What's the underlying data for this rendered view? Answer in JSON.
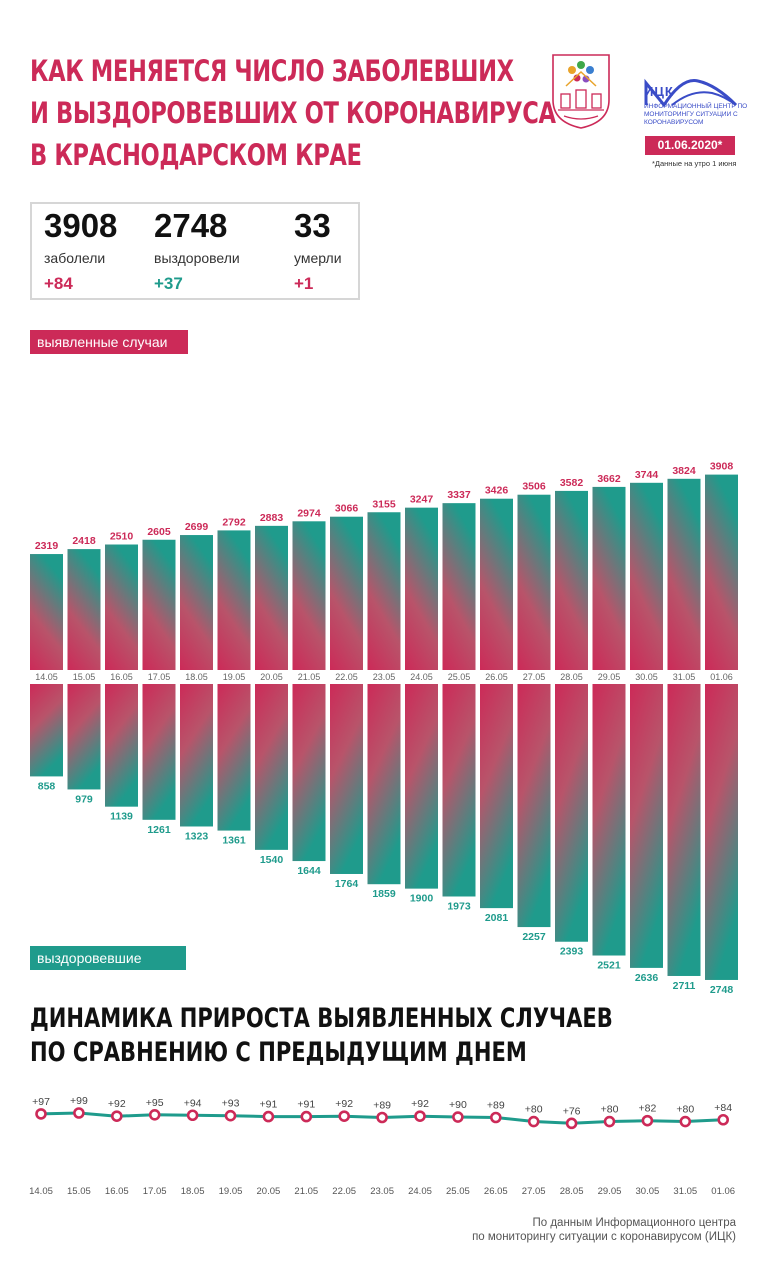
{
  "header": {
    "title_lines": [
      "КАК МЕНЯЕТСЯ ЧИСЛО ЗАБОЛЕВШИХ",
      "И ВЫЗДОРОВЕВШИХ ОТ КОРОНАВИРУСА",
      "В КРАСНОДАРСКОМ КРАЕ"
    ],
    "logo_name": "ИЦК",
    "logo_desc": "ИНФОРМАЦИОННЫЙ ЦЕНТР ПО МОНИТОРИНГУ СИТУАЦИИ С КОРОНАВИРУСОМ",
    "date": "01.06.2020*",
    "date_note": "*Данные на утро 1 июня"
  },
  "stats": [
    {
      "value": "3908",
      "label": "заболели",
      "delta": "+84",
      "tone": "red"
    },
    {
      "value": "2748",
      "label": "выздоровели",
      "delta": "+37",
      "tone": "teal"
    },
    {
      "value": "33",
      "label": "умерли",
      "delta": "+1",
      "tone": "red"
    }
  ],
  "labels": {
    "cases": "выявленные случаи",
    "recovered": "выздоровевшие"
  },
  "subtitle_lines": [
    "ДИНАМИКА ПРИРОСТА ВЫЯВЛЕННЫХ СЛУЧАЕВ",
    "ПО СРАВНЕНИЮ С ПРЕДЫДУЩИМ ДНЕМ"
  ],
  "footer_lines": [
    "По данным Информационного центра",
    "по мониторингу ситуации с коронавирусом (ИЦК)"
  ],
  "colors": {
    "red": "#cc2a58",
    "teal": "#1f9b8c",
    "line": "#1f9b8c",
    "marker": "#cc2a58"
  },
  "chart_data": [
    {
      "type": "bar",
      "categories": [
        "14.05",
        "15.05",
        "16.05",
        "17.05",
        "18.05",
        "19.05",
        "20.05",
        "21.05",
        "22.05",
        "23.05",
        "24.05",
        "25.05",
        "26.05",
        "27.05",
        "28.05",
        "29.05",
        "30.05",
        "31.05",
        "01.06"
      ],
      "series": [
        {
          "name": "выявленные случаи",
          "values": [
            2319,
            2418,
            2510,
            2605,
            2699,
            2792,
            2883,
            2974,
            3066,
            3155,
            3247,
            3337,
            3426,
            3506,
            3582,
            3662,
            3744,
            3824,
            3908
          ]
        },
        {
          "name": "выздоровевшие",
          "values": [
            858,
            979,
            1139,
            1261,
            1323,
            1361,
            1540,
            1644,
            1764,
            1859,
            1900,
            1973,
            2081,
            2257,
            2393,
            2521,
            2636,
            2711,
            2748
          ]
        }
      ]
    },
    {
      "type": "line",
      "categories": [
        "14.05",
        "15.05",
        "16.05",
        "17.05",
        "18.05",
        "19.05",
        "20.05",
        "21.05",
        "22.05",
        "23.05",
        "24.05",
        "25.05",
        "26.05",
        "27.05",
        "28.05",
        "29.05",
        "30.05",
        "31.05",
        "01.06"
      ],
      "values": [
        97,
        99,
        92,
        95,
        94,
        93,
        91,
        91,
        92,
        89,
        92,
        90,
        89,
        80,
        76,
        80,
        82,
        80,
        84
      ],
      "labels": [
        "+97",
        "+99",
        "+92",
        "+95",
        "+94",
        "+93",
        "+91",
        "+91",
        "+92",
        "+89",
        "+92",
        "+90",
        "+89",
        "+80",
        "+76",
        "+80",
        "+82",
        "+80",
        "+84"
      ]
    }
  ]
}
